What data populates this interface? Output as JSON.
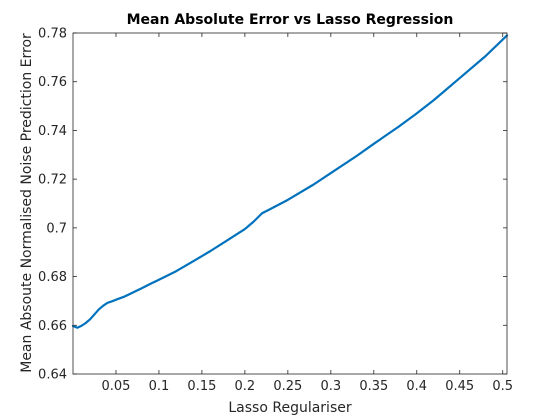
{
  "chart_data": {
    "type": "line",
    "title": "Mean Absolute Error vs Lasso Regression",
    "xlabel": "Lasso Regulariser",
    "ylabel": "Mean Absoute Normalised Noise Prediction Error",
    "xlim": [
      0,
      0.505
    ],
    "ylim": [
      0.64,
      0.78
    ],
    "xticks": [
      0.05,
      0.1,
      0.15,
      0.2,
      0.25,
      0.3,
      0.35,
      0.4,
      0.45,
      0.5
    ],
    "xtick_labels": [
      "0.05",
      "0.1",
      "0.15",
      "0.2",
      "0.25",
      "0.3",
      "0.35",
      "0.4",
      "0.45",
      "0.5"
    ],
    "yticks": [
      0.64,
      0.66,
      0.68,
      0.7,
      0.72,
      0.74,
      0.76,
      0.78
    ],
    "ytick_labels": [
      "0.64",
      "0.66",
      "0.68",
      "0.7",
      "0.72",
      "0.74",
      "0.76",
      "0.78"
    ],
    "grid": false,
    "series": [
      {
        "color": "#0072BD",
        "x": [
          0,
          0.005,
          0.01,
          0.015,
          0.02,
          0.025,
          0.03,
          0.035,
          0.04,
          0.045,
          0.05,
          0.06,
          0.07,
          0.08,
          0.09,
          0.1,
          0.12,
          0.14,
          0.16,
          0.18,
          0.2,
          0.21,
          0.22,
          0.23,
          0.25,
          0.28,
          0.3,
          0.33,
          0.35,
          0.38,
          0.4,
          0.42,
          0.45,
          0.48,
          0.505
        ],
        "y": [
          0.6597,
          0.659,
          0.6598,
          0.661,
          0.6625,
          0.6645,
          0.6665,
          0.668,
          0.6692,
          0.6698,
          0.6705,
          0.6718,
          0.6735,
          0.6752,
          0.677,
          0.6787,
          0.6822,
          0.6863,
          0.6905,
          0.695,
          0.6995,
          0.7025,
          0.706,
          0.7078,
          0.7115,
          0.7178,
          0.7225,
          0.7295,
          0.7345,
          0.7418,
          0.747,
          0.7525,
          0.7615,
          0.7705,
          0.779
        ]
      }
    ]
  }
}
